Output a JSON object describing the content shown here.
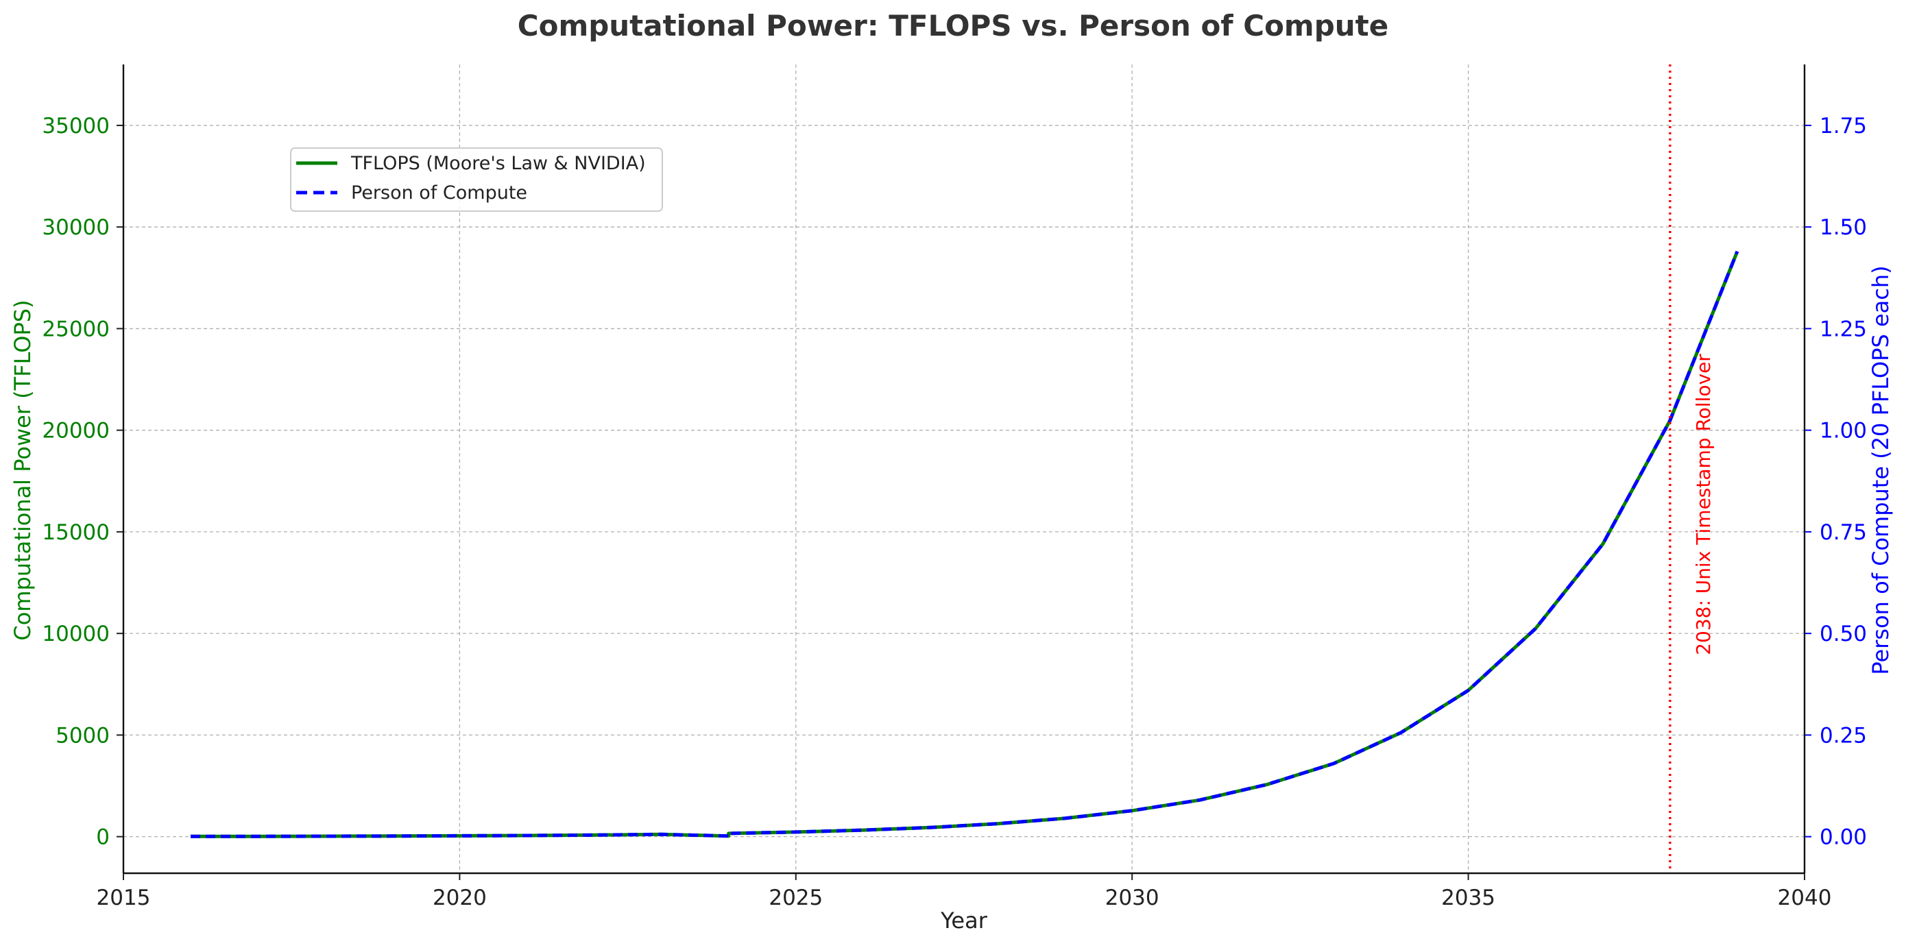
{
  "chart_data": {
    "type": "line",
    "title": "Computational Power: TFLOPS vs. Person of Compute",
    "xlabel": "Year",
    "ylabel_left": "Computational Power (TFLOPS)",
    "ylabel_right": "Person of Compute (20 PFLOPS each)",
    "xlim": [
      2015,
      2040
    ],
    "ylim_left": [
      -1800,
      38000
    ],
    "ylim_right": [
      -0.09,
      1.9
    ],
    "x_ticks": [
      2015,
      2020,
      2025,
      2030,
      2035,
      2040
    ],
    "y_ticks_left": [
      0,
      5000,
      10000,
      15000,
      20000,
      25000,
      30000,
      35000
    ],
    "y_ticks_right": [
      "0.00",
      "0.25",
      "0.50",
      "0.75",
      "1.00",
      "1.25",
      "1.50",
      "1.75"
    ],
    "grid": true,
    "legend_position": "upper-left",
    "series": [
      {
        "name": "TFLOPS (Moore's Law & NVIDIA)",
        "axis": "left",
        "color": "#008000",
        "style": "solid",
        "x": [
          2016,
          2017,
          2018,
          2019,
          2020,
          2021,
          2022,
          2023,
          2024,
          2024,
          2025,
          2026,
          2027,
          2028,
          2029,
          2030,
          2031,
          2032,
          2033,
          2034,
          2035,
          2036,
          2037,
          2038,
          2039
        ],
        "values": [
          10,
          14,
          20,
          28,
          40,
          56,
          80,
          113,
          30,
          160,
          226,
          320,
          450,
          640,
          900,
          1280,
          1800,
          2560,
          3600,
          5120,
          7200,
          10240,
          14400,
          20480,
          28800
        ]
      },
      {
        "name": "Person of Compute",
        "axis": "right",
        "color": "#0000ff",
        "style": "dashed",
        "x": [
          2016,
          2017,
          2018,
          2019,
          2020,
          2021,
          2022,
          2023,
          2024,
          2024,
          2025,
          2026,
          2027,
          2028,
          2029,
          2030,
          2031,
          2032,
          2033,
          2034,
          2035,
          2036,
          2037,
          2038,
          2039
        ],
        "values": [
          0.0005,
          0.0007,
          0.001,
          0.0014,
          0.002,
          0.0028,
          0.004,
          0.0056,
          0.0015,
          0.008,
          0.0113,
          0.016,
          0.0225,
          0.032,
          0.045,
          0.064,
          0.09,
          0.128,
          0.18,
          0.256,
          0.36,
          0.512,
          0.72,
          1.024,
          1.44
        ]
      }
    ],
    "annotations": [
      {
        "type": "vline",
        "x": 2038,
        "color": "#ff0000",
        "style": "dotted",
        "label": "2038: Unix Timestamp Rollover"
      }
    ],
    "colors": {
      "left_axis": "#008000",
      "right_axis": "#0000ff",
      "annotation": "#ff0000",
      "grid": "#b0b0b0"
    }
  }
}
